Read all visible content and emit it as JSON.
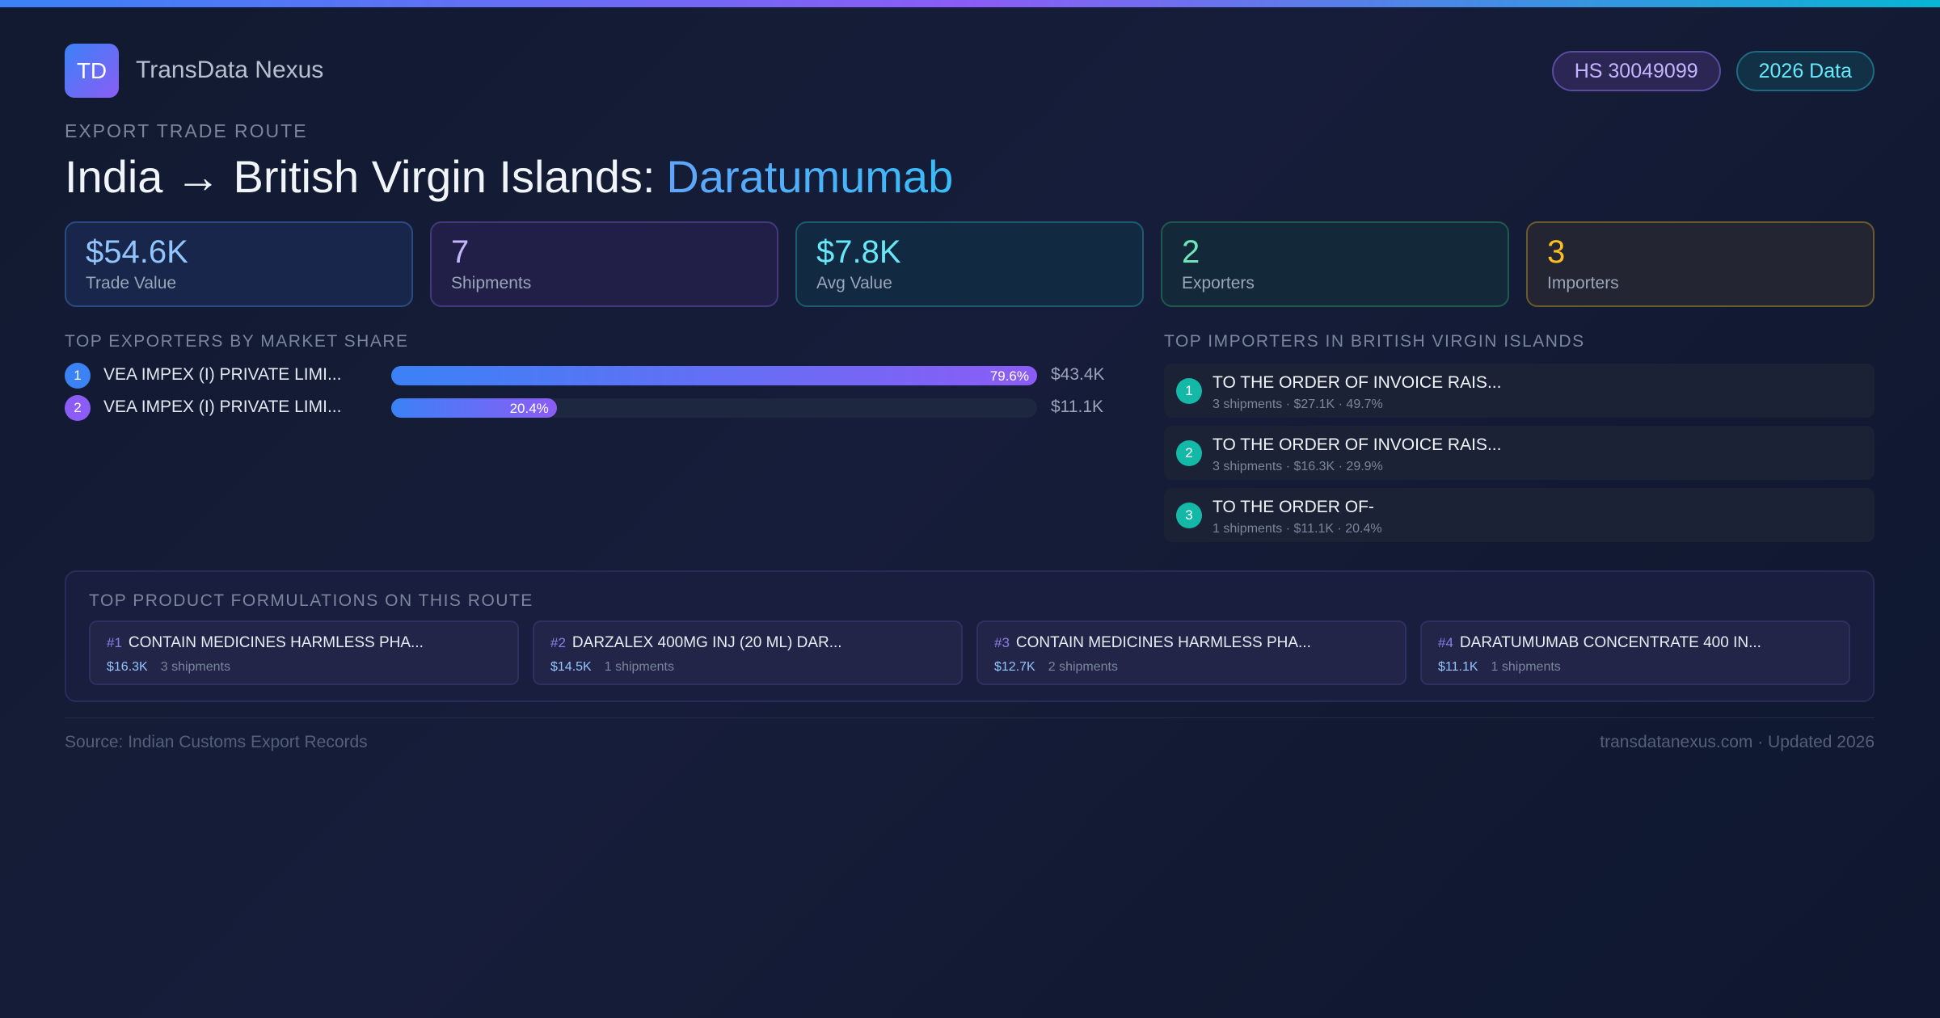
{
  "header": {
    "logo": "TD",
    "brand": "TransData Nexus",
    "badges": [
      "HS 30049099",
      "2026 Data"
    ]
  },
  "route": {
    "eyebrow": "EXPORT TRADE ROUTE",
    "title": "India → British Virgin Islands:",
    "product": "Daratumumab"
  },
  "stats": [
    {
      "value": "$54.6K",
      "label": "Trade Value"
    },
    {
      "value": "7",
      "label": "Shipments"
    },
    {
      "value": "$7.8K",
      "label": "Avg Value"
    },
    {
      "value": "2",
      "label": "Exporters"
    },
    {
      "value": "3",
      "label": "Importers"
    }
  ],
  "exporters": {
    "heading": "TOP EXPORTERS BY MARKET SHARE",
    "rows": [
      {
        "rank": 1,
        "name": "VEA IMPEX (I) PRIVATE LIMI...",
        "share": 79.6,
        "share_label": "79.6%",
        "value": "$43.4K"
      },
      {
        "rank": 2,
        "name": "VEA IMPEX (I) PRIVATE LIMI...",
        "share": 20.4,
        "share_label": "20.4%",
        "value": "$11.1K"
      }
    ]
  },
  "importers": {
    "heading": "TOP IMPORTERS IN BRITISH VIRGIN ISLANDS",
    "rows": [
      {
        "rank": 1,
        "name": "TO THE ORDER OF INVOICE RAIS...",
        "detail": "3 shipments · $27.1K · 49.7%"
      },
      {
        "rank": 2,
        "name": "TO THE ORDER OF INVOICE RAIS...",
        "detail": "3 shipments · $16.3K · 29.9%"
      },
      {
        "rank": 3,
        "name": "TO THE ORDER OF-",
        "detail": "1 shipments · $11.1K · 20.4%"
      }
    ]
  },
  "formulations": {
    "heading": "TOP PRODUCT FORMULATIONS ON THIS ROUTE",
    "items": [
      {
        "rank": "#1",
        "name": "CONTAIN MEDICINES HARMLESS PHA...",
        "value": "$16.3K",
        "shipments": "3 shipments"
      },
      {
        "rank": "#2",
        "name": "DARZALEX 400MG INJ (20 ML) DAR...",
        "value": "$14.5K",
        "shipments": "1 shipments"
      },
      {
        "rank": "#3",
        "name": "CONTAIN MEDICINES HARMLESS PHA...",
        "value": "$12.7K",
        "shipments": "2 shipments"
      },
      {
        "rank": "#4",
        "name": "DARATUMUMAB CONCENTRATE 400 IN...",
        "value": "$11.1K",
        "shipments": "1 shipments"
      }
    ]
  },
  "footer": {
    "source": "Source: Indian Customs Export Records",
    "site": "transdatanexus.com · Updated 2026"
  }
}
